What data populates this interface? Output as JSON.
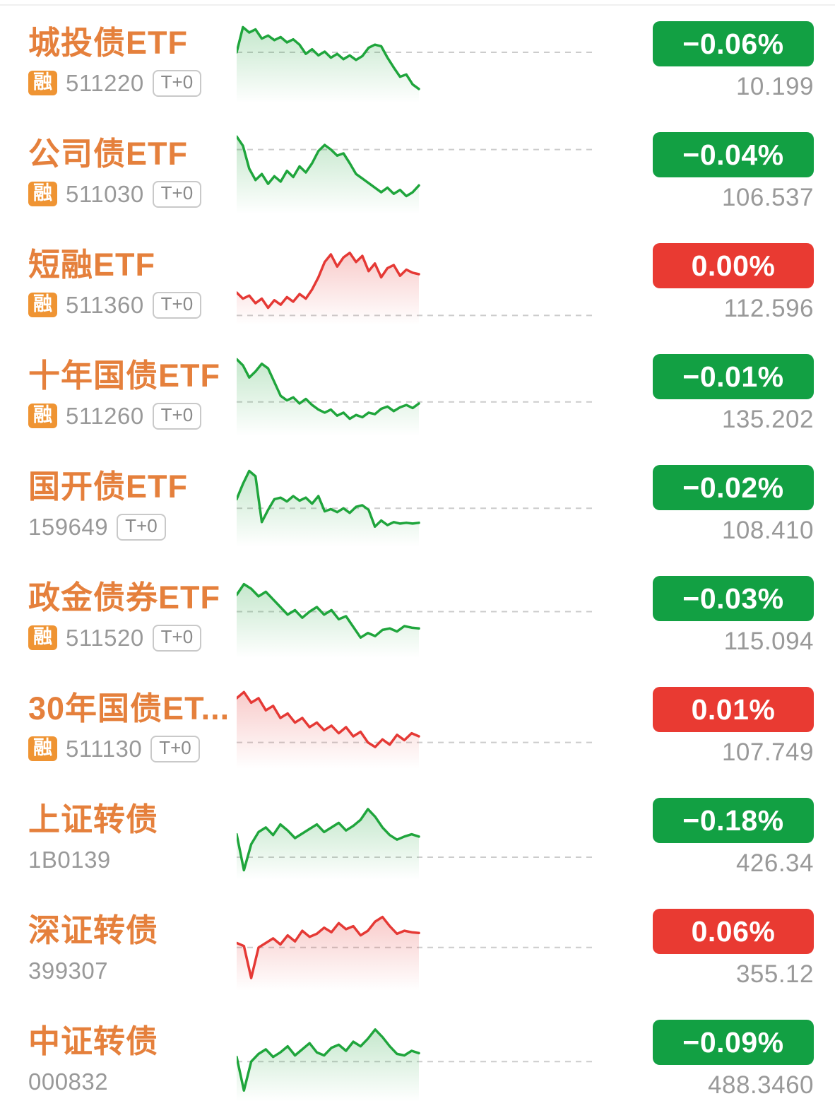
{
  "labels": {
    "rong": "融",
    "t0": "T+0"
  },
  "colors": {
    "name_orange": "#E5803C",
    "rong_badge_bg": "#EF9433",
    "badge_green": "#12A043",
    "badge_red": "#E93A32",
    "chart_green": "#1FA53C",
    "chart_red": "#E53935",
    "baseline_gray": "#CCCCCC",
    "text_gray": "#999999"
  },
  "rows": [
    {
      "name": "城投债ETF",
      "code": "511220",
      "has_rong": true,
      "has_t0": true,
      "change": "−0.06%",
      "price": "10.199",
      "color": "green",
      "baseline": 62,
      "spark": [
        62,
        95,
        88,
        92,
        80,
        84,
        78,
        82,
        75,
        79,
        72,
        60,
        66,
        58,
        63,
        55,
        60,
        53,
        58,
        52,
        57,
        68,
        72,
        70,
        55,
        42,
        30,
        33,
        20,
        14
      ]
    },
    {
      "name": "公司债ETF",
      "code": "511030",
      "has_rong": true,
      "has_t0": true,
      "change": "−0.04%",
      "price": "106.537",
      "color": "green",
      "baseline": 80,
      "spark": [
        97,
        85,
        55,
        40,
        48,
        35,
        45,
        38,
        52,
        44,
        58,
        50,
        62,
        78,
        86,
        80,
        72,
        75,
        62,
        48,
        42,
        36,
        30,
        24,
        30,
        22,
        27,
        19,
        24,
        33
      ]
    },
    {
      "name": "短融ETF",
      "code": "511360",
      "has_rong": true,
      "has_t0": true,
      "change": "0.00%",
      "price": "112.596",
      "color": "red",
      "baseline": 8,
      "spark": [
        38,
        30,
        34,
        24,
        30,
        18,
        28,
        22,
        32,
        26,
        36,
        30,
        42,
        58,
        78,
        88,
        72,
        84,
        90,
        78,
        86,
        66,
        76,
        58,
        70,
        74,
        60,
        68,
        64,
        62
      ]
    },
    {
      "name": "十年国债ETF",
      "code": "511260",
      "has_rong": true,
      "has_t0": true,
      "change": "−0.01%",
      "price": "135.202",
      "color": "green",
      "baseline": 40,
      "spark": [
        96,
        88,
        72,
        80,
        90,
        84,
        66,
        48,
        42,
        46,
        38,
        44,
        36,
        30,
        26,
        30,
        22,
        26,
        18,
        23,
        20,
        26,
        24,
        31,
        34,
        28,
        33,
        36,
        32,
        38
      ]
    },
    {
      "name": "国开债ETF",
      "code": "159649",
      "has_rong": false,
      "has_t0": true,
      "change": "−0.02%",
      "price": "108.410",
      "color": "green",
      "baseline": 46,
      "spark": [
        58,
        78,
        95,
        88,
        28,
        44,
        58,
        60,
        55,
        62,
        56,
        60,
        52,
        62,
        42,
        45,
        41,
        46,
        40,
        48,
        50,
        44,
        22,
        30,
        24,
        28,
        26,
        27,
        26,
        27
      ]
    },
    {
      "name": "政金债券ETF",
      "code": "511520",
      "has_rong": true,
      "has_t0": true,
      "change": "−0.03%",
      "price": "115.094",
      "color": "green",
      "baseline": 56,
      "spark": [
        78,
        92,
        86,
        76,
        82,
        72,
        62,
        52,
        58,
        48,
        56,
        62,
        52,
        58,
        46,
        50,
        36,
        22,
        28,
        24,
        32,
        34,
        30,
        37,
        35,
        34
      ]
    },
    {
      "name": "30年国债ET...",
      "code": "511130",
      "has_rong": true,
      "has_t0": true,
      "change": "0.01%",
      "price": "107.749",
      "color": "red",
      "baseline": 30,
      "spark": [
        88,
        96,
        82,
        88,
        72,
        78,
        62,
        68,
        56,
        62,
        50,
        56,
        46,
        52,
        42,
        50,
        38,
        44,
        30,
        24,
        34,
        27,
        40,
        33,
        42,
        38
      ]
    },
    {
      "name": "上证转债",
      "code": "1B0139",
      "has_rong": false,
      "has_t0": false,
      "change": "−0.18%",
      "price": "426.34",
      "color": "green",
      "baseline": 25,
      "spark": [
        55,
        8,
        42,
        58,
        64,
        54,
        68,
        60,
        50,
        56,
        62,
        68,
        58,
        64,
        70,
        60,
        66,
        74,
        88,
        78,
        64,
        54,
        48,
        52,
        55,
        52
      ]
    },
    {
      "name": "深证转债",
      "code": "399307",
      "has_rong": false,
      "has_t0": false,
      "change": "0.06%",
      "price": "355.12",
      "color": "red",
      "baseline": 52,
      "spark": [
        58,
        54,
        12,
        52,
        58,
        64,
        56,
        68,
        60,
        74,
        66,
        70,
        78,
        72,
        84,
        76,
        80,
        68,
        74,
        86,
        92,
        80,
        70,
        74,
        72,
        71
      ]
    },
    {
      "name": "中证转债",
      "code": "000832",
      "has_rong": false,
      "has_t0": false,
      "change": "−0.09%",
      "price": "488.3460",
      "color": "green",
      "baseline": 48,
      "spark": [
        54,
        10,
        48,
        58,
        64,
        54,
        60,
        68,
        56,
        64,
        72,
        60,
        56,
        66,
        70,
        62,
        74,
        68,
        78,
        90,
        80,
        68,
        58,
        56,
        62,
        59
      ]
    }
  ]
}
